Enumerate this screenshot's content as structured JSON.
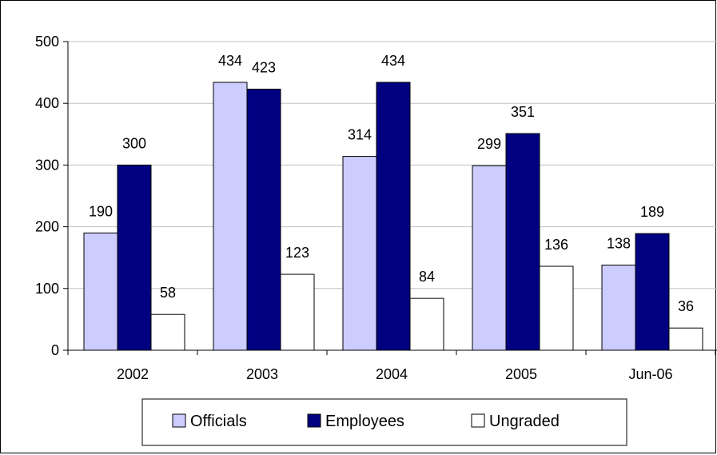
{
  "chart_data": {
    "type": "bar",
    "categories": [
      "2002",
      "2003",
      "2004",
      "2005",
      "Jun-06"
    ],
    "series": [
      {
        "name": "Officials",
        "values": [
          190,
          434,
          314,
          299,
          138
        ],
        "color": "#ccccff"
      },
      {
        "name": "Employees",
        "values": [
          300,
          423,
          434,
          351,
          189
        ],
        "color": "#000080"
      },
      {
        "name": "Ungraded",
        "values": [
          58,
          123,
          84,
          136,
          36
        ],
        "color": "#ffffff"
      }
    ],
    "ylim": [
      0,
      500
    ],
    "yticks": [
      0,
      100,
      200,
      300,
      400,
      500
    ],
    "grid": true,
    "legend": "bottom",
    "data_labels": true
  }
}
